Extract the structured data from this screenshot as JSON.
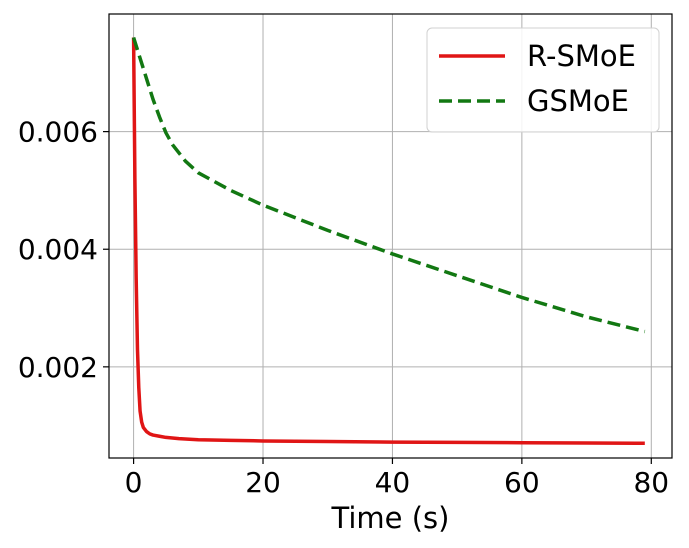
{
  "chart_data": {
    "type": "line",
    "title": "",
    "xlabel": "Time (s)",
    "ylabel": "",
    "xlim": [
      -3.8,
      83.2
    ],
    "ylim": [
      0.00045,
      0.008
    ],
    "xticks": [
      0,
      20,
      40,
      60,
      80
    ],
    "xtick_labels": [
      "0",
      "20",
      "40",
      "60",
      "80"
    ],
    "yticks": [
      0.002,
      0.004,
      0.006
    ],
    "ytick_labels": [
      "0.002",
      "0.004",
      "0.006"
    ],
    "grid": true,
    "legend_position": "top-right",
    "series": [
      {
        "name": "R-SMoE",
        "color": "#e01515",
        "style": "solid",
        "x": [
          0,
          0.2,
          0.4,
          0.6,
          0.8,
          1,
          1.25,
          1.5,
          2,
          2.5,
          3,
          4,
          5,
          7,
          10,
          15,
          20,
          30,
          40,
          50,
          60,
          70,
          79
        ],
        "y": [
          0.0076,
          0.0052,
          0.0035,
          0.0023,
          0.00165,
          0.00125,
          0.00106,
          0.00097,
          0.0009,
          0.00086,
          0.00084,
          0.00082,
          0.0008,
          0.00078,
          0.00076,
          0.00075,
          0.00074,
          0.00073,
          0.00072,
          0.000715,
          0.00071,
          0.000705,
          0.0007
        ]
      },
      {
        "name": "GSMoE",
        "color": "#127812",
        "style": "dashed",
        "x": [
          0,
          1,
          2,
          3,
          4,
          5,
          6,
          8,
          10,
          15,
          20,
          30,
          40,
          50,
          60,
          70,
          79
        ],
        "y": [
          0.0076,
          0.00725,
          0.0069,
          0.00655,
          0.00625,
          0.00598,
          0.00578,
          0.0055,
          0.0053,
          0.005,
          0.00475,
          0.00432,
          0.00392,
          0.00355,
          0.00318,
          0.00285,
          0.0026
        ]
      }
    ]
  }
}
